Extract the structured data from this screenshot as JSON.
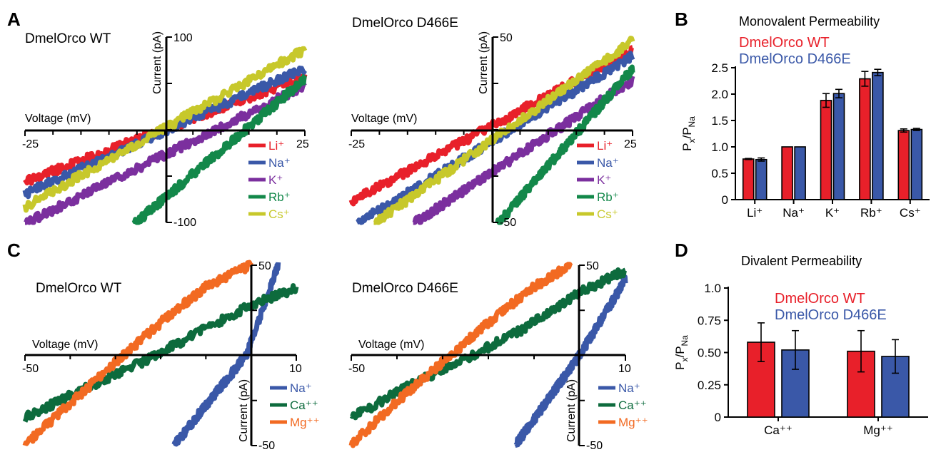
{
  "panels": {
    "A": "A",
    "B": "B",
    "C": "C",
    "D": "D"
  },
  "colors": {
    "Li": "#e8202a",
    "Na": "#3a58a8",
    "K": "#7b2f9e",
    "Rb": "#13884a",
    "Cs": "#c7c82b",
    "Ca": "#0d6b3d",
    "Mg": "#f26a22",
    "WT": "#e8202a",
    "D466E": "#3a58a8"
  },
  "chart_data": [
    {
      "type": "line",
      "panel": "A",
      "title": "DmelOrco WT",
      "xlabel": "Voltage (mV)",
      "ylabel": "Current (pA)",
      "xlim": [
        -25,
        25
      ],
      "ylim": [
        -100,
        100
      ],
      "x_tick_labels": [
        "-25",
        "25"
      ],
      "y_tick_labels": [
        "100",
        "-100"
      ],
      "legend": [
        "Li⁺",
        "Na⁺",
        "K⁺",
        "Rb⁺",
        "Cs⁺"
      ],
      "series": [
        {
          "name": "Li⁺",
          "color": "#e8202a",
          "x": [
            -25,
            25
          ],
          "y": [
            -55,
            58
          ]
        },
        {
          "name": "Na⁺",
          "color": "#3a58a8",
          "x": [
            -25,
            25
          ],
          "y": [
            -68,
            67
          ]
        },
        {
          "name": "K⁺",
          "color": "#7b2f9e",
          "x": [
            -25,
            25
          ],
          "y": [
            -100,
            48
          ]
        },
        {
          "name": "Rb⁺",
          "color": "#13884a",
          "x": [
            -5.5,
            25
          ],
          "y": [
            -100,
            55
          ]
        },
        {
          "name": "Cs⁺",
          "color": "#c7c82b",
          "x": [
            -25,
            25
          ],
          "y": [
            -82,
            87
          ]
        }
      ]
    },
    {
      "type": "line",
      "panel": "A",
      "title": "DmelOrco D466E",
      "xlabel": "Voltage (mV)",
      "ylabel": "Current (pA)",
      "xlim": [
        -25,
        25
      ],
      "ylim": [
        -50,
        50
      ],
      "x_tick_labels": [
        "-25",
        "25"
      ],
      "y_tick_labels": [
        "50",
        "-50"
      ],
      "legend": [
        "Li⁺",
        "Na⁺",
        "K⁺",
        "Rb⁺",
        "Cs⁺"
      ],
      "series": [
        {
          "name": "Li⁺",
          "color": "#e8202a",
          "x": [
            -25,
            25
          ],
          "y": [
            -38,
            43
          ]
        },
        {
          "name": "Na⁺",
          "color": "#3a58a8",
          "x": [
            -24,
            25
          ],
          "y": [
            -50,
            40
          ]
        },
        {
          "name": "K⁺",
          "color": "#7b2f9e",
          "x": [
            -14,
            25
          ],
          "y": [
            -50,
            27
          ]
        },
        {
          "name": "Rb⁺",
          "color": "#13884a",
          "x": [
            1,
            25
          ],
          "y": [
            -50,
            33
          ]
        },
        {
          "name": "Cs⁺",
          "color": "#c7c82b",
          "x": [
            -21,
            25
          ],
          "y": [
            -50,
            48
          ]
        }
      ]
    },
    {
      "type": "bar",
      "panel": "B",
      "title": "Monovalent Permeability",
      "ylabel": "Px/PNa",
      "ylim": [
        0,
        2.5
      ],
      "y_tick_labels": [
        "0",
        "0.5",
        "1.0",
        "1.5",
        "2.0",
        "2.5"
      ],
      "categories": [
        "Li⁺",
        "Na⁺",
        "K⁺",
        "Rb⁺",
        "Cs⁺"
      ],
      "series": [
        {
          "name": "DmelOrco WT",
          "values": [
            0.77,
            1.0,
            1.88,
            2.29,
            1.31
          ],
          "err": [
            0.01,
            0.0,
            0.13,
            0.14,
            0.03
          ]
        },
        {
          "name": "DmelOrco D466E",
          "values": [
            0.76,
            1.0,
            2.01,
            2.41,
            1.33
          ],
          "err": [
            0.03,
            0.0,
            0.08,
            0.06,
            0.02
          ]
        }
      ]
    },
    {
      "type": "line",
      "panel": "C",
      "title": "DmelOrco WT",
      "xlabel": "Voltage (mV)",
      "ylabel": "Current (pA)",
      "xlim": [
        -50,
        10
      ],
      "ylim": [
        -50,
        50
      ],
      "x_tick_labels": [
        "-50",
        "10"
      ],
      "y_tick_labels": [
        "50",
        "-50"
      ],
      "legend": [
        "Na⁺",
        "Ca⁺⁺",
        "Mg⁺⁺"
      ],
      "series": [
        {
          "name": "Na⁺",
          "color": "#3a58a8",
          "x": [
            -17,
            -1,
            6
          ],
          "y": [
            -50,
            0,
            50
          ]
        },
        {
          "name": "Ca⁺⁺",
          "color": "#0d6b3d",
          "x": [
            -50,
            -38,
            -25,
            -12,
            0,
            10
          ],
          "y": [
            -35,
            -20,
            -5,
            12,
            28,
            37
          ]
        },
        {
          "name": "Mg⁺⁺",
          "color": "#f26a22",
          "x": [
            -50,
            -40,
            -30,
            -20,
            -10,
            0
          ],
          "y": [
            -50,
            -27,
            -4,
            18,
            38,
            50
          ]
        }
      ]
    },
    {
      "type": "line",
      "panel": "C",
      "title": "DmelOrco D466E",
      "xlabel": "Voltage (mV)",
      "ylabel": "Current (pA)",
      "xlim": [
        -50,
        10
      ],
      "ylim": [
        -50,
        50
      ],
      "x_tick_labels": [
        "-50",
        "10"
      ],
      "y_tick_labels": [
        "50",
        "-50"
      ],
      "legend": [
        "Na⁺",
        "Ca⁺⁺",
        "Mg⁺⁺"
      ],
      "series": [
        {
          "name": "Na⁺",
          "color": "#3a58a8",
          "x": [
            -14,
            0,
            10
          ],
          "y": [
            -50,
            0,
            42
          ]
        },
        {
          "name": "Ca⁺⁺",
          "color": "#0d6b3d",
          "x": [
            -50,
            -38,
            -25,
            -12,
            0,
            10
          ],
          "y": [
            -35,
            -18,
            -2,
            15,
            35,
            47
          ]
        },
        {
          "name": "Mg⁺⁺",
          "color": "#f26a22",
          "x": [
            -50,
            -40,
            -30,
            -20,
            -10,
            -2
          ],
          "y": [
            -50,
            -26,
            -4,
            18,
            38,
            50
          ]
        }
      ]
    },
    {
      "type": "bar",
      "panel": "D",
      "title": "Divalent Permeability",
      "ylabel": "Px/PNa",
      "ylim": [
        0,
        1.0
      ],
      "y_tick_labels": [
        "0",
        "0.25",
        "0.50",
        "0.75",
        "1.0"
      ],
      "categories": [
        "Ca⁺⁺",
        "Mg⁺⁺"
      ],
      "series": [
        {
          "name": "DmelOrco WT",
          "values": [
            0.58,
            0.51
          ],
          "err": [
            0.15,
            0.16
          ]
        },
        {
          "name": "DmelOrco D466E",
          "values": [
            0.52,
            0.47
          ],
          "err": [
            0.15,
            0.13
          ]
        }
      ]
    }
  ]
}
